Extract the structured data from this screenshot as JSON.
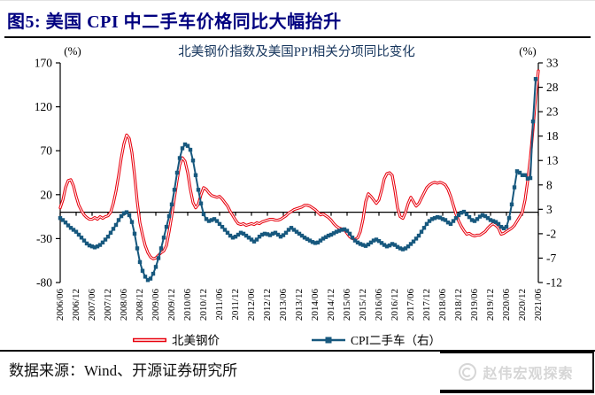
{
  "page": {
    "figure_title": "图5:  美国 CPI 中二手车价格同比大幅抬升",
    "source_note": "数据来源：Wind、开源证券研究所",
    "watermark": "赵伟宏观探索"
  },
  "colors": {
    "title_navy": "#000080",
    "steel_red": "#e8000d",
    "cpi_blue": "#17587e",
    "axis_black": "#000000",
    "chart_title_ink": "#17365d",
    "watermark_gray": "#d6d6d6"
  },
  "chart_data": {
    "type": "line",
    "title": "北美钢价指数及美国PPI相关分项同比变化",
    "legend_position": "bottom",
    "grid": false,
    "baseline_left_value": 0,
    "left_axis": {
      "unit": "(%)",
      "max": 170,
      "min": -80,
      "ticks": [
        170,
        120,
        70,
        20,
        -30,
        -80
      ]
    },
    "right_axis": {
      "unit": "(%)",
      "max": 33,
      "min": -12,
      "ticks": [
        33,
        28,
        23,
        18,
        13,
        8,
        3,
        -2,
        -7,
        -12
      ]
    },
    "x_start": "2006/06",
    "x_end": "2021/06",
    "x_frequency": "monthly",
    "x_tick_labels": [
      "2006/06",
      "2006/12",
      "2007/06",
      "2007/12",
      "2008/06",
      "2008/12",
      "2009/06",
      "2009/12",
      "2010/06",
      "2010/12",
      "2011/06",
      "2011/12",
      "2012/06",
      "2012/12",
      "2013/06",
      "2013/12",
      "2014/06",
      "2014/12",
      "2015/06",
      "2015/12",
      "2016/06",
      "2016/12",
      "2017/06",
      "2017/12",
      "2018/06",
      "2018/12",
      "2019/06",
      "2019/12",
      "2020/06",
      "2020/12",
      "2021/06"
    ],
    "series": [
      {
        "name": "北美钢价",
        "axis": "left",
        "color": "#e8000d",
        "style": "hollow-line",
        "values": [
          5,
          14,
          28,
          36,
          37,
          30,
          18,
          8,
          2,
          -3,
          -6,
          -8,
          -8,
          -6,
          -8,
          -5,
          -7,
          -5,
          -4,
          0,
          10,
          24,
          42,
          62,
          78,
          88,
          84,
          68,
          42,
          12,
          -12,
          -26,
          -38,
          -46,
          -51,
          -53,
          -52,
          -49,
          -46,
          -44,
          -38,
          -22,
          -4,
          16,
          36,
          54,
          62,
          58,
          45,
          26,
          11,
          5,
          9,
          20,
          28,
          26,
          22,
          19,
          18,
          17,
          18,
          15,
          11,
          7,
          1,
          -4,
          -9,
          -13,
          -14,
          -13,
          -15,
          -14,
          -13,
          -14,
          -12,
          -13,
          -11,
          -10,
          -9,
          -8,
          -8,
          -9,
          -9,
          -8,
          -6,
          -4,
          -1,
          1,
          3,
          4,
          5,
          6,
          8,
          8,
          7,
          5,
          3,
          0,
          -3,
          -2,
          -4,
          -6,
          -9,
          -13,
          -16,
          -18,
          -19,
          -20,
          -24,
          -28,
          -30,
          -31,
          -29,
          -22,
          -8,
          12,
          21,
          18,
          14,
          10,
          14,
          25,
          38,
          44,
          45,
          42,
          25,
          5,
          -5,
          -7,
          0,
          10,
          17,
          12,
          7,
          10,
          16,
          22,
          28,
          31,
          33,
          34,
          33,
          34,
          33,
          31,
          26,
          18,
          8,
          -2,
          -10,
          -16,
          -21,
          -25,
          -24,
          -26,
          -27,
          -26,
          -26,
          -24,
          -22,
          -18,
          -15,
          -13,
          -15,
          -18,
          -25,
          -24,
          -22,
          -20,
          -18,
          -15,
          -10,
          -5,
          0,
          14,
          36,
          62,
          95,
          132,
          161
        ]
      },
      {
        "name": "CPI二手车（右）",
        "axis": "right",
        "color": "#17587e",
        "style": "line-square-markers",
        "values": [
          1.2,
          0.8,
          0.3,
          -0.3,
          -0.8,
          -1.2,
          -1.6,
          -2.2,
          -2.8,
          -3.4,
          -4,
          -4.4,
          -4.6,
          -4.8,
          -4.6,
          -4.3,
          -3.8,
          -3.2,
          -2.6,
          -1.8,
          -1,
          -0.2,
          0.8,
          1.6,
          2.2,
          2.4,
          1.8,
          0.4,
          -2,
          -5,
          -7.8,
          -9.6,
          -10.8,
          -11.5,
          -11.2,
          -10.2,
          -8.8,
          -7,
          -5,
          -2.8,
          -0.6,
          1.6,
          4,
          7,
          10.5,
          13.5,
          15.5,
          16.3,
          16,
          15.2,
          13,
          10,
          7,
          4.2,
          2,
          1,
          0.6,
          0.8,
          1,
          0.6,
          0,
          -0.6,
          -1.2,
          -1.8,
          -2.4,
          -2.8,
          -2.6,
          -2.2,
          -1.8,
          -2,
          -2.4,
          -2.8,
          -3.2,
          -3.6,
          -3.2,
          -2.6,
          -2.2,
          -2,
          -2.1,
          -2.3,
          -2,
          -1.8,
          -2.2,
          -2.6,
          -2.3,
          -1.8,
          -1.2,
          -0.8,
          -1.2,
          -1.6,
          -2,
          -2.4,
          -2.8,
          -3.1,
          -3.4,
          -3.7,
          -3.9,
          -3.8,
          -3.4,
          -3,
          -2.7,
          -2.4,
          -2.2,
          -1.9,
          -1.6,
          -1.4,
          -1.2,
          -1.1,
          -1.4,
          -2,
          -2.8,
          -3.4,
          -3.8,
          -4.1,
          -4.3,
          -4.5,
          -4.2,
          -3.8,
          -3.4,
          -3.2,
          -3.5,
          -3.9,
          -4.3,
          -4.6,
          -4.4,
          -4.1,
          -4.3,
          -4.7,
          -5,
          -5.2,
          -5,
          -4.6,
          -4.1,
          -3.6,
          -3,
          -2.4,
          -1.6,
          -0.8,
          0,
          0.6,
          1,
          1.2,
          1.4,
          1.3,
          1,
          0.8,
          0.3,
          0,
          0.6,
          1.2,
          1.8,
          2.3,
          2.5,
          2,
          1.4,
          0.8,
          0.6,
          1,
          1.5,
          1.8,
          1.6,
          1.2,
          0.8,
          0.6,
          0.4,
          0,
          -0.6,
          -0.9,
          -0.6,
          1.2,
          4,
          7.5,
          10.8,
          10.5,
          10,
          10,
          9.3,
          9.4,
          21,
          29.7
        ]
      }
    ]
  }
}
